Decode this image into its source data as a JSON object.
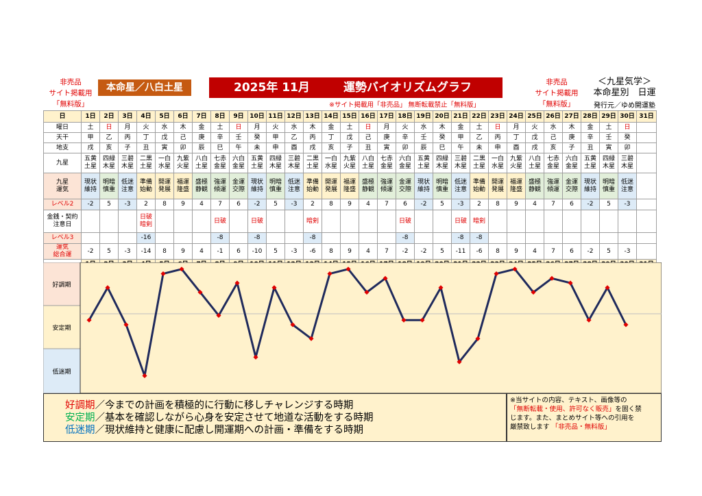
{
  "header": {
    "left_notice": [
      "非売品",
      "サイト掲載用",
      "「無料版」"
    ],
    "star_label": "本命星／八白土星",
    "title_year_month": "2025年 11月",
    "title_main": "運勢バイオリズムグラフ",
    "right_notice": [
      "非売品",
      "サイト掲載用",
      "「無料版」"
    ],
    "kyusei": "＜九星気学＞",
    "honmei_line": "本命星別　日運",
    "publisher": "発行元／ゆめ開運塾",
    "sub_notice": "※サイト掲載用「非売品」 無断転載禁止「無料版」"
  },
  "table": {
    "labels": {
      "day": "日",
      "dow": "曜日",
      "tenkan": "天干",
      "chishi": "地支",
      "kyusei": "九星",
      "unki": [
        "九星",
        "運気"
      ],
      "level2": "レベル2",
      "warn": [
        "金銭・契約",
        "注意日"
      ],
      "level3": "レベル3",
      "total": [
        "運気",
        "総合運"
      ]
    },
    "days": [
      "1日",
      "2日",
      "3日",
      "4日",
      "5日",
      "6日",
      "7日",
      "8日",
      "9日",
      "10日",
      "11日",
      "12日",
      "13日",
      "14日",
      "15日",
      "16日",
      "17日",
      "18日",
      "19日",
      "20日",
      "21日",
      "22日",
      "23日",
      "24日",
      "25日",
      "26日",
      "27日",
      "28日",
      "29日",
      "30日",
      "31日"
    ],
    "dow": [
      "土",
      "日",
      "月",
      "火",
      "水",
      "木",
      "金",
      "土",
      "日",
      "月",
      "火",
      "水",
      "木",
      "金",
      "土",
      "日",
      "月",
      "火",
      "水",
      "木",
      "金",
      "土",
      "日",
      "月",
      "火",
      "水",
      "木",
      "金",
      "土",
      "日",
      ""
    ],
    "tenkan": [
      "甲",
      "乙",
      "丙",
      "丁",
      "戊",
      "己",
      "庚",
      "辛",
      "壬",
      "癸",
      "甲",
      "乙",
      "丙",
      "丁",
      "戊",
      "己",
      "庚",
      "辛",
      "壬",
      "癸",
      "甲",
      "乙",
      "丙",
      "丁",
      "戊",
      "己",
      "庚",
      "辛",
      "壬",
      "癸",
      ""
    ],
    "chishi": [
      "戌",
      "亥",
      "子",
      "丑",
      "寅",
      "卯",
      "辰",
      "巳",
      "午",
      "未",
      "申",
      "酉",
      "戌",
      "亥",
      "子",
      "丑",
      "寅",
      "卯",
      "辰",
      "巳",
      "午",
      "未",
      "申",
      "酉",
      "戌",
      "亥",
      "子",
      "丑",
      "寅",
      "卯",
      ""
    ],
    "stars": [
      [
        "五黄",
        "土星"
      ],
      [
        "四緑",
        "木星"
      ],
      [
        "三碧",
        "木星"
      ],
      [
        "二黒",
        "土星"
      ],
      [
        "一白",
        "水星"
      ],
      [
        "九紫",
        "火星"
      ],
      [
        "八白",
        "土星"
      ],
      [
        "七赤",
        "金星"
      ],
      [
        "六白",
        "金星"
      ],
      [
        "五黄",
        "土星"
      ],
      [
        "四緑",
        "木星"
      ],
      [
        "三碧",
        "木星"
      ],
      [
        "二黒",
        "土星"
      ],
      [
        "一白",
        "水星"
      ],
      [
        "九紫",
        "火星"
      ],
      [
        "八白",
        "土星"
      ],
      [
        "七赤",
        "金星"
      ],
      [
        "六白",
        "金星"
      ],
      [
        "五黄",
        "土星"
      ],
      [
        "四緑",
        "木星"
      ],
      [
        "三碧",
        "木星"
      ],
      [
        "二黒",
        "土星"
      ],
      [
        "一白",
        "水星"
      ],
      [
        "九紫",
        "火星"
      ],
      [
        "八白",
        "土星"
      ],
      [
        "七赤",
        "金星"
      ],
      [
        "六白",
        "金星"
      ],
      [
        "五黄",
        "土星"
      ],
      [
        "四緑",
        "木星"
      ],
      [
        "三碧",
        "木星"
      ],
      [
        "",
        ""
      ]
    ],
    "unki": [
      [
        "現状",
        "維持"
      ],
      [
        "明暗",
        "慎重"
      ],
      [
        "低迷",
        "注意"
      ],
      [
        "準備",
        "始動"
      ],
      [
        "開運",
        "発展"
      ],
      [
        "福運",
        "隆盛"
      ],
      [
        "盛極",
        "静観"
      ],
      [
        "強運",
        "傾運"
      ],
      [
        "金運",
        "交際"
      ],
      [
        "現状",
        "維持"
      ],
      [
        "明暗",
        "慎重"
      ],
      [
        "低迷",
        "注意"
      ],
      [
        "準備",
        "始動"
      ],
      [
        "開運",
        "発展"
      ],
      [
        "福運",
        "隆盛"
      ],
      [
        "盛極",
        "静観"
      ],
      [
        "強運",
        "傾運"
      ],
      [
        "金運",
        "交際"
      ],
      [
        "現状",
        "維持"
      ],
      [
        "明暗",
        "慎重"
      ],
      [
        "低迷",
        "注意"
      ],
      [
        "準備",
        "始動"
      ],
      [
        "開運",
        "発展"
      ],
      [
        "福運",
        "隆盛"
      ],
      [
        "盛極",
        "静観"
      ],
      [
        "強運",
        "傾運"
      ],
      [
        "金運",
        "交際"
      ],
      [
        "現状",
        "維持"
      ],
      [
        "明暗",
        "慎重"
      ],
      [
        "低迷",
        "注意"
      ],
      [
        "",
        ""
      ]
    ],
    "unki_class": [
      "low",
      "mid",
      "low",
      "good",
      "good",
      "good",
      "mid",
      "mid",
      "mid",
      "low",
      "mid",
      "low",
      "good",
      "good",
      "good",
      "mid",
      "mid",
      "mid",
      "low",
      "mid",
      "low",
      "good",
      "good",
      "good",
      "mid",
      "mid",
      "mid",
      "low",
      "mid",
      "low",
      ""
    ],
    "level2": [
      "-2",
      "5",
      "-3",
      "2",
      "8",
      "9",
      "4",
      "7",
      "6",
      "-2",
      "5",
      "-3",
      "2",
      "8",
      "9",
      "4",
      "7",
      "6",
      "-2",
      "5",
      "-3",
      "2",
      "8",
      "9",
      "4",
      "7",
      "6",
      "-2",
      "5",
      "-3",
      ""
    ],
    "level2_blue": [
      true,
      false,
      true,
      false,
      false,
      false,
      false,
      false,
      false,
      true,
      false,
      true,
      false,
      false,
      false,
      false,
      false,
      false,
      true,
      false,
      true,
      false,
      false,
      false,
      false,
      false,
      false,
      true,
      false,
      true,
      false
    ],
    "warn": [
      [
        ""
      ],
      [
        ""
      ],
      [
        ""
      ],
      [
        "日破",
        "暗剣"
      ],
      [
        ""
      ],
      [
        ""
      ],
      [
        ""
      ],
      [
        "日破"
      ],
      [
        ""
      ],
      [
        "日破"
      ],
      [
        ""
      ],
      [
        ""
      ],
      [
        "暗剣"
      ],
      [
        ""
      ],
      [
        ""
      ],
      [
        ""
      ],
      [
        ""
      ],
      [
        "日破"
      ],
      [
        ""
      ],
      [
        ""
      ],
      [
        "日破"
      ],
      [
        "暗剣"
      ],
      [
        ""
      ],
      [
        ""
      ],
      [
        ""
      ],
      [
        ""
      ],
      [
        ""
      ],
      [
        ""
      ],
      [
        ""
      ],
      [
        ""
      ],
      [
        ""
      ]
    ],
    "level3": [
      "",
      "",
      "",
      "-16",
      "",
      "",
      "",
      "-8",
      "",
      "-8",
      "",
      "",
      "-8",
      "",
      "",
      "",
      "",
      "-8",
      "",
      "",
      "-8",
      "-8",
      "",
      "",
      "",
      "",
      "",
      "",
      "",
      "",
      ""
    ],
    "total": [
      "-2",
      "5",
      "-3",
      "-14",
      "8",
      "9",
      "4",
      "-1",
      "6",
      "-10",
      "5",
      "-3",
      "-6",
      "8",
      "9",
      "4",
      "7",
      "-2",
      "-2",
      "5",
      "-11",
      "-6",
      "8",
      "9",
      "4",
      "7",
      "6",
      "-2",
      "5",
      "-3",
      ""
    ]
  },
  "chart_data": {
    "type": "line",
    "x": [
      1,
      2,
      3,
      4,
      5,
      6,
      7,
      8,
      9,
      10,
      11,
      12,
      13,
      14,
      15,
      16,
      17,
      18,
      19,
      20,
      21,
      22,
      23,
      24,
      25,
      26,
      27,
      28,
      29,
      30
    ],
    "series": [
      {
        "values": [
          -2,
          5,
          -3,
          -14,
          8,
          9,
          4,
          -1,
          6,
          -10,
          5,
          -3,
          -6,
          8,
          9,
          4,
          7,
          -2,
          -2,
          5,
          -11,
          -6,
          8,
          9,
          4,
          7,
          6,
          -2,
          5,
          -3
        ]
      }
    ],
    "ylim": [
      -16,
      10
    ],
    "zones": [
      "好調期",
      "安定期",
      "低迷期"
    ],
    "zone_colors": [
      "#fce4d6",
      "#fff2cc",
      "#ddebf7"
    ],
    "line_color": "#1f2a5c",
    "point_color": "#e00000",
    "grid": false
  },
  "legend": {
    "lines": [
      {
        "term": "好調期",
        "text": "／今までの計画を積極的に行動に移しチャレンジする時期"
      },
      {
        "term": "安定期",
        "text": "／基本を確認しながら心身を安定させて地道な活動をする時期"
      },
      {
        "term": "低迷期",
        "text": "／現状維持と健康に配慮し開運期への計画・準備をする時期"
      }
    ]
  },
  "copyright": {
    "line1": "※当サイトの内容、テキスト、画像等の",
    "line2_red": "「無断転載・使用、許可なく販売」",
    "line2_rest": "を固く禁",
    "line3": "じます。また、まとめサイト等への引用を",
    "line4": "厳禁致します",
    "line4_red": "「非売品・無料版」"
  }
}
